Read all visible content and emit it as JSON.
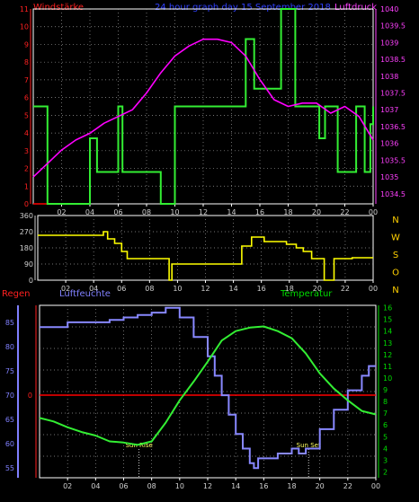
{
  "colors": {
    "background": "#000000",
    "frame": "#ffffff",
    "grid": "#9a9a9a",
    "wind_axis": "#ff2020",
    "pressure_axis": "#ff40ff",
    "humidity_axis": "#8080ff",
    "temperature_axis": "#00dd00",
    "rain_axis": "#ff2020",
    "wind_speed_line": "#33ee33",
    "pressure_line": "#ff00ff",
    "direction_line": "#ffff00",
    "humidity_line": "#8888ff",
    "temperature_line": "#33ee33",
    "rain_line": "#ff0000"
  },
  "header": {
    "wind_title": "Windstärke",
    "center_title": "24 hour graph day  15 September 2018",
    "pressure_title": "Luftdruck"
  },
  "bottom_titles": {
    "rain": "Regen",
    "humidity": "Luftfeuchte",
    "temperature": "Temperatur"
  },
  "x_ticks": [
    "02",
    "04",
    "06",
    "08",
    "10",
    "12",
    "14",
    "16",
    "18",
    "20",
    "22",
    "00"
  ],
  "chart_data": [
    {
      "type": "line",
      "x_range": [
        0,
        24
      ],
      "left_axis": {
        "title": "Windstärke",
        "ticks": [
          "0",
          "1",
          "2",
          "3",
          "4",
          "5",
          "6",
          "7",
          "8",
          "9",
          "10",
          "11"
        ],
        "ylim": [
          0,
          11
        ]
      },
      "right_axis": {
        "title": "Luftdruck",
        "ticks": [
          "1034.5",
          "1035",
          "1035.5",
          "1036",
          "1036.5",
          "1037",
          "1037.5",
          "1038",
          "1038.5",
          "1039",
          "1039.5",
          "1040"
        ],
        "ylim": [
          1034.2,
          1040
        ]
      },
      "grid": true,
      "series": [
        {
          "name": "Windstärke",
          "axis": "left",
          "step": true,
          "x": [
            0,
            1,
            4,
            4.5,
            5,
            6,
            6.3,
            7,
            9,
            9.3,
            10,
            15,
            15.6,
            17.5,
            18.5,
            19.5,
            20.2,
            20.6,
            21.5,
            22.8,
            23.4,
            23.8,
            24
          ],
          "y": [
            5.5,
            0,
            3.7,
            1.8,
            1.8,
            5.5,
            1.8,
            1.8,
            0,
            0,
            5.5,
            9.3,
            6.5,
            11,
            5.5,
            5.5,
            3.7,
            5.5,
            1.8,
            5.5,
            1.8,
            4.5,
            5.5
          ]
        },
        {
          "name": "Luftdruck",
          "axis": "right",
          "step": false,
          "x": [
            0,
            1,
            2,
            3,
            4,
            5,
            6,
            7,
            8,
            9,
            10,
            11,
            12,
            13,
            14,
            15,
            16,
            17,
            18,
            19,
            20,
            21,
            22,
            23,
            24
          ],
          "y": [
            1035.0,
            1035.4,
            1035.8,
            1036.1,
            1036.3,
            1036.6,
            1036.8,
            1037.0,
            1037.5,
            1038.1,
            1038.6,
            1038.9,
            1039.1,
            1039.1,
            1039.0,
            1038.6,
            1037.9,
            1037.3,
            1037.1,
            1037.2,
            1037.2,
            1036.9,
            1037.1,
            1036.8,
            1036.1
          ]
        },
        {
          "name": "Regen",
          "axis": "left",
          "step": false,
          "x": [
            0,
            4
          ],
          "y": [
            0,
            0
          ]
        }
      ]
    },
    {
      "type": "line",
      "x_range": [
        0,
        24
      ],
      "left_axis": {
        "ticks": [
          "0",
          "90",
          "180",
          "270",
          "360"
        ],
        "ylim": [
          0,
          360
        ]
      },
      "right_axis": {
        "ticks": [
          "N",
          "W",
          "S",
          "O",
          "N"
        ]
      },
      "grid": true,
      "series": [
        {
          "axis": "left",
          "step": true,
          "x": [
            0,
            4.4,
            4.7,
            5.0,
            5.5,
            6.0,
            6.4,
            9.0,
            9.4,
            9.6,
            13.5,
            14.0,
            14.6,
            15.3,
            16.2,
            17.8,
            18.5,
            19.0,
            19.6,
            20.5,
            20.8,
            21.2,
            21.8,
            22.5,
            24
          ],
          "y": [
            250,
            250,
            270,
            230,
            205,
            160,
            120,
            120,
            0,
            90,
            90,
            90,
            190,
            240,
            215,
            200,
            180,
            160,
            120,
            0,
            0,
            120,
            120,
            125,
            125
          ]
        }
      ]
    },
    {
      "type": "line",
      "x_range": [
        0,
        24
      ],
      "left_axis": {
        "title": "Luftfeuchte",
        "ticks": [
          "55",
          "60",
          "65",
          "70",
          "75",
          "80",
          "85"
        ],
        "ylim": [
          53,
          88.5
        ]
      },
      "right_axis": {
        "title": "Temperatur",
        "ticks": [
          "2",
          "3",
          "4",
          "5",
          "6",
          "7",
          "8",
          "9",
          "10",
          "11",
          "12",
          "13",
          "14",
          "15",
          "16"
        ],
        "ylim": [
          1.5,
          16.2
        ]
      },
      "rain_axis": {
        "title": "Regen",
        "ticks": [
          "0"
        ]
      },
      "grid": true,
      "annotations": [
        {
          "text": "Sun Rise",
          "x": 7.1
        },
        {
          "text": "Sun Set",
          "x": 19.2
        }
      ],
      "series": [
        {
          "name": "Luftfeuchte",
          "axis": "left",
          "step": true,
          "x": [
            0,
            2,
            4,
            5,
            6,
            7,
            8,
            9,
            9.6,
            10,
            11,
            12,
            12.5,
            13,
            13.5,
            14,
            14.5,
            15,
            15.3,
            15.6,
            16,
            17,
            17.5,
            18,
            18.5,
            19,
            20,
            21,
            22,
            23,
            23.5,
            24
          ],
          "y": [
            84,
            85,
            85,
            85.5,
            86,
            86.5,
            87,
            88,
            88,
            86,
            82,
            78,
            74,
            70,
            66,
            62,
            59,
            56,
            55,
            57,
            57,
            58,
            58,
            59,
            58,
            59,
            63,
            67,
            71,
            74,
            76,
            76
          ]
        },
        {
          "name": "Temperatur",
          "axis": "right",
          "step": false,
          "x": [
            0,
            1,
            2,
            3,
            4,
            5,
            6,
            7,
            8,
            9,
            10,
            11,
            12,
            13,
            14,
            15,
            16,
            17,
            18,
            19,
            20,
            21,
            22,
            23,
            24
          ],
          "y": [
            6.6,
            6.3,
            5.8,
            5.4,
            5.1,
            4.6,
            4.5,
            4.3,
            4.6,
            6.2,
            8.1,
            9.7,
            11.4,
            13.2,
            14.0,
            14.3,
            14.4,
            14.0,
            13.4,
            12.1,
            10.4,
            9.1,
            8.1,
            7.2,
            6.9
          ]
        },
        {
          "name": "Regen",
          "axis": "rain",
          "step": false,
          "x": [
            0,
            24
          ],
          "y": [
            0,
            0
          ]
        }
      ]
    }
  ]
}
